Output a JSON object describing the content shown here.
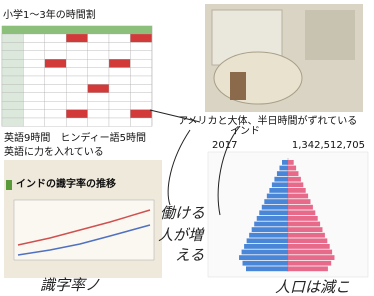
{
  "timetable": {
    "title": "小学1〜3年の時間割"
  },
  "map_note": "アメリカと大体、半日時間がずれている",
  "population": {
    "country": "インド",
    "year": "2017",
    "total": "1,342,512,705"
  },
  "textbook": {
    "heading": "インドの識字率の推移"
  },
  "notes": [
    "英語9時間　ヒンディー語5時間",
    "英語に力を入れている"
  ],
  "handwriting": [
    "働ける",
    "人が増",
    "える",
    "識字率ノ",
    "人口は減こ"
  ]
}
